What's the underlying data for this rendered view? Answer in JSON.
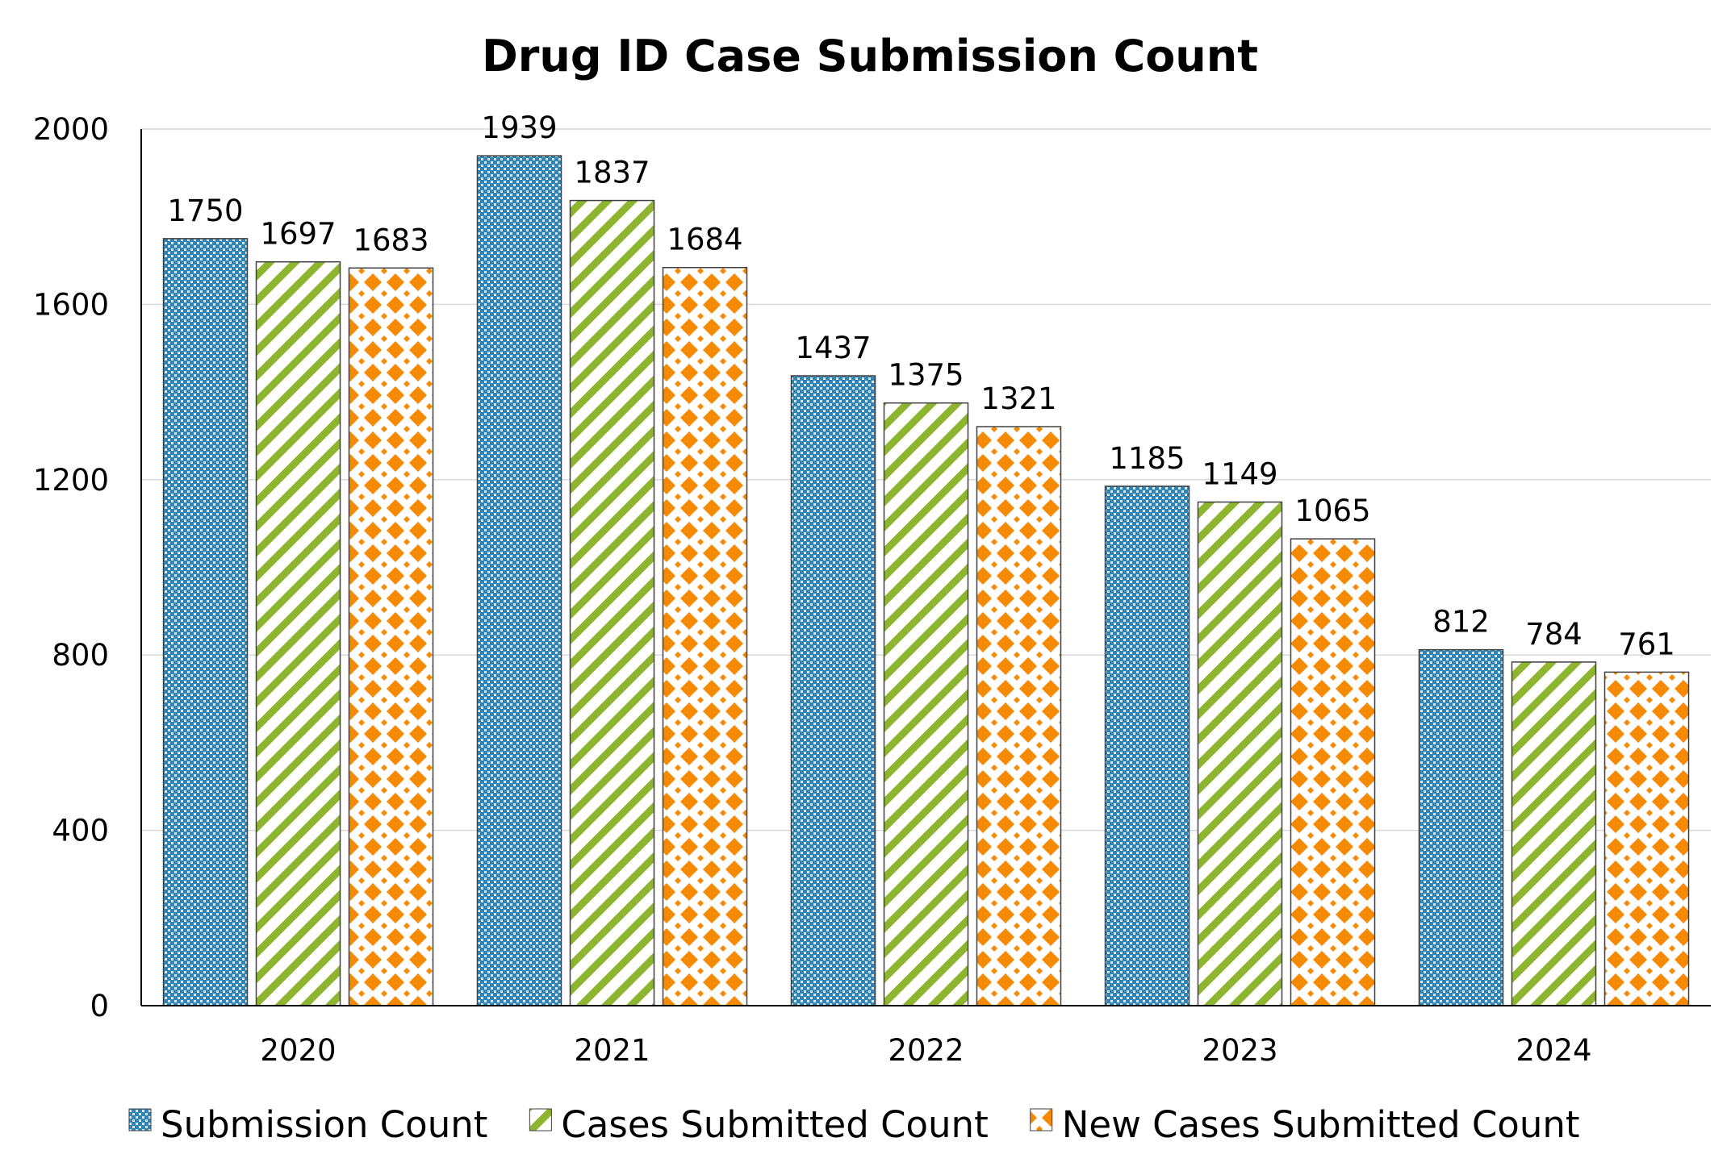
{
  "chart_data": {
    "type": "bar",
    "title": "Drug ID Case Submission Count",
    "xlabel": "",
    "ylabel": "",
    "categories": [
      "2020",
      "2021",
      "2022",
      "2023",
      "2024"
    ],
    "ylim": [
      0,
      2000
    ],
    "yticks": [
      0,
      400,
      800,
      1200,
      1600,
      2000
    ],
    "grid": true,
    "legend_position": "bottom",
    "series": [
      {
        "name": "Submission Count",
        "values": [
          1750,
          1939,
          1437,
          1185,
          812
        ],
        "color": "#2e86b8",
        "pattern": "checker"
      },
      {
        "name": "Cases Submitted Count",
        "values": [
          1697,
          1837,
          1375,
          1149,
          784
        ],
        "color": "#8db52f",
        "pattern": "diagonal-stripes"
      },
      {
        "name": "New Cases Submitted Count",
        "values": [
          1683,
          1684,
          1321,
          1065,
          761
        ],
        "color": "#f58a07",
        "pattern": "diamonds"
      }
    ]
  }
}
